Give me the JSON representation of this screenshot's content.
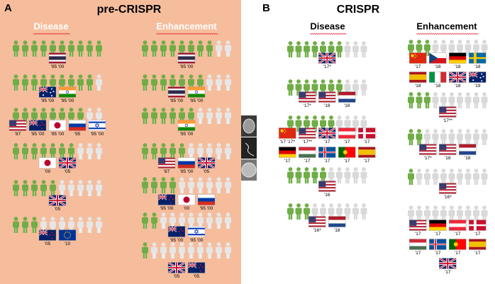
{
  "panels": [
    {
      "letter": "A",
      "title": "pre-CRISPR",
      "columns": [
        {
          "heading": "Disease",
          "rows": [
            {
              "green": 10,
              "year_labels": [
                "'95 '00"
              ]
            },
            {
              "green": 9,
              "year_labels": [
                "'95 '00",
                "'95 '00"
              ]
            },
            {
              "green": 8,
              "year_labels": [
                "'87",
                "'95 '00",
                "'95 '00",
                "'95",
                "'95 '00"
              ]
            },
            {
              "green": 7,
              "year_labels": [
                "'00",
                "'05"
              ]
            },
            {
              "green": 5,
              "year_labels": [
                "'05"
              ]
            },
            {
              "green": 3,
              "year_labels": [
                "'05",
                "'10"
              ]
            }
          ]
        },
        {
          "heading": "Enhancement",
          "rows": [
            {
              "green": 8,
              "year_labels": [
                "'95 '00"
              ]
            },
            {
              "green": 7,
              "year_labels": [
                "'95 '00",
                "'95 '00"
              ]
            },
            {
              "green": 6,
              "year_labels": [
                "'95 '00"
              ]
            },
            {
              "green": 5,
              "year_labels": [
                "'87",
                "'95 '00",
                "'05"
              ]
            },
            {
              "green": 4,
              "year_labels": [
                "'95 '00",
                "'00",
                "'95 '00"
              ]
            },
            {
              "green": 2,
              "year_labels": [
                "'95 '00",
                "'95 '00"
              ]
            },
            {
              "green": 1,
              "year_labels": [
                "'05",
                "'05"
              ]
            }
          ]
        }
      ]
    },
    {
      "letter": "B",
      "title": "CRISPR",
      "columns": [
        {
          "heading": "Disease",
          "rows": [
            {
              "green": 7,
              "year_labels": [
                "'17*"
              ]
            },
            {
              "green": 7,
              "year_labels": [
                "'17*",
                "'18",
                "'18"
              ]
            },
            {
              "green": 6,
              "year_labels": [
                "'17 '17*",
                "'17**",
                "'17",
                "'17",
                "'17",
                "'17",
                "'17",
                "'17",
                "'17",
                "'17"
              ]
            },
            {
              "green": 5,
              "year_labels": [
                "'16"
              ]
            },
            {
              "green": 3,
              "year_labels": [
                "'16*",
                "'18"
              ]
            }
          ]
        },
        {
          "heading": "Enhancement",
          "rows": [
            {
              "green": 3,
              "year_labels": [
                "'17",
                "'18",
                "'18",
                "'18",
                "'18",
                "'18",
                "'18",
                "'19"
              ]
            },
            {
              "green": 3,
              "year_labels": [
                "'17**"
              ]
            },
            {
              "green": 2,
              "year_labels": [
                "'17*",
                "'18",
                "'18"
              ]
            },
            {
              "green": 1,
              "year_labels": [
                "'16*"
              ]
            },
            {
              "green": 0,
              "year_labels": [
                "'17",
                "'17",
                "'17",
                "'17",
                "'17",
                "'17",
                "'17",
                "'17",
                "'17"
              ]
            }
          ]
        }
      ]
    }
  ]
}
